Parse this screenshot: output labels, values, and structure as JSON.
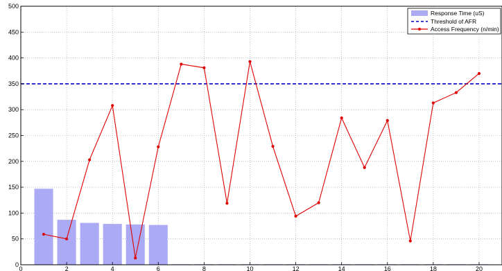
{
  "chart_data": {
    "type": "bar",
    "title": "",
    "xlabel": "",
    "ylabel": "",
    "xlim": [
      0,
      21
    ],
    "ylim": [
      0,
      500
    ],
    "grid": true,
    "legend_position": "top-right",
    "x_ticks": [
      "0",
      "2",
      "4",
      "6",
      "8",
      "10",
      "12",
      "14",
      "16",
      "18",
      "20"
    ],
    "y_ticks": [
      "0",
      "50",
      "100",
      "150",
      "200",
      "250",
      "300",
      "350",
      "400",
      "450",
      "500"
    ],
    "x": [
      1,
      2,
      3,
      4,
      5,
      6,
      7,
      8,
      9,
      10,
      11,
      12,
      13,
      14,
      15,
      16,
      17,
      18,
      19,
      20
    ],
    "series": [
      {
        "name": "Response Time (uS)",
        "kind": "bar",
        "color": "#aaaaf5",
        "values": [
          147,
          87,
          81,
          79,
          78,
          77,
          0,
          0,
          0,
          0,
          0,
          0,
          0,
          0,
          0,
          0,
          0,
          0,
          0,
          0
        ]
      },
      {
        "name": "Threshold of AFR",
        "kind": "hline",
        "color": "#0000cc",
        "value": 350
      },
      {
        "name": "Access Frequency (n/min)",
        "kind": "line",
        "color": "#e00000",
        "values": [
          59,
          50,
          203,
          308,
          13,
          228,
          388,
          381,
          119,
          393,
          229,
          94,
          120,
          284,
          188,
          279,
          46,
          313,
          333,
          370
        ]
      }
    ]
  }
}
